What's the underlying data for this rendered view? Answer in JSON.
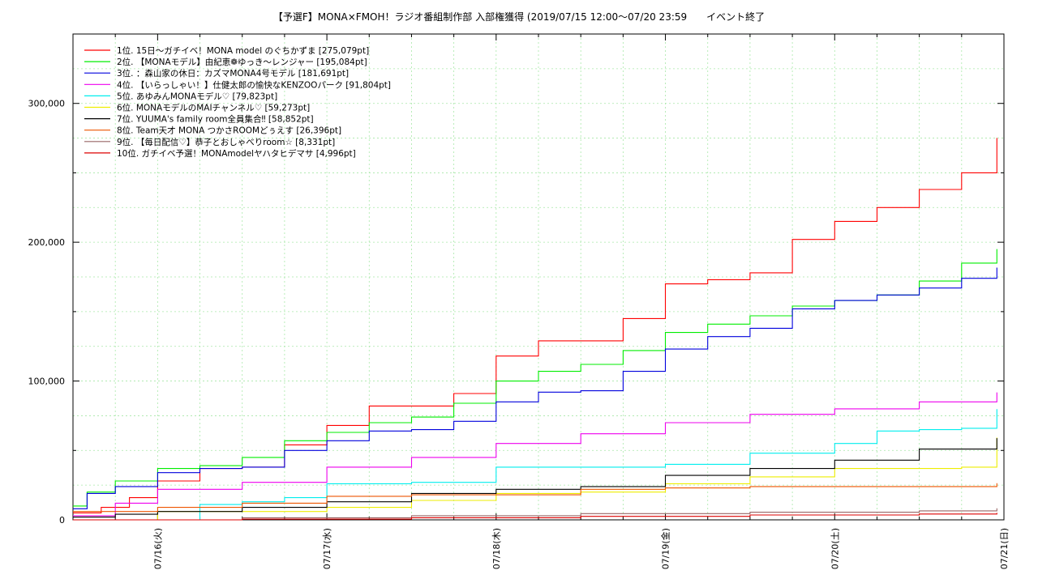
{
  "chart_data": {
    "type": "line",
    "title": "【予選F】MONA×FMOH！ラジオ番組制作部 入部権獲得 (2019/07/15 12:00〜07/20 23:59　　イベント終了",
    "xlabel": "",
    "ylabel": "",
    "x_start": "07/15 12:00",
    "x_end": "07/21 00:00",
    "x_ticks": [
      "07/16(火)",
      "07/17(水)",
      "07/18(木)",
      "07/19(金)",
      "07/20(土)",
      "07/21(日)"
    ],
    "y_ticks": [
      "0",
      "100,000",
      "200,000",
      "300,000"
    ],
    "ylim": [
      0,
      350000
    ],
    "grid": true,
    "legend_position": "top-left",
    "series": [
      {
        "name": "1位. 15日〜ガチイベ！MONA model のぐちかずま [275,079pt]",
        "color": "#ff0000",
        "x": [
          "07/15 12:00",
          "07/15 16:00",
          "07/15 20:00",
          "07/16 00:00",
          "07/16 06:00",
          "07/16 12:00",
          "07/16 18:00",
          "07/17 00:00",
          "07/17 06:00",
          "07/17 12:00",
          "07/17 18:00",
          "07/18 00:00",
          "07/18 06:00",
          "07/18 12:00",
          "07/18 18:00",
          "07/19 00:00",
          "07/19 06:00",
          "07/19 12:00",
          "07/19 18:00",
          "07/20 00:00",
          "07/20 06:00",
          "07/20 12:00",
          "07/20 18:00",
          "07/20 23:00"
        ],
        "y": [
          5000,
          9000,
          16000,
          28000,
          37000,
          38000,
          54000,
          68000,
          82000,
          82000,
          91000,
          118000,
          129000,
          129000,
          145000,
          170000,
          173000,
          178000,
          202000,
          215000,
          225000,
          238000,
          250000,
          275079
        ]
      },
      {
        "name": "2位. 【MONAモデル】由紀恵❁ゆっき〜レンジャー [195,084pt]",
        "color": "#00ee00",
        "x": [
          "07/15 12:00",
          "07/15 14:00",
          "07/15 18:00",
          "07/16 00:00",
          "07/16 06:00",
          "07/16 12:00",
          "07/16 18:00",
          "07/17 00:00",
          "07/17 06:00",
          "07/17 12:00",
          "07/17 18:00",
          "07/18 00:00",
          "07/18 06:00",
          "07/18 12:00",
          "07/18 18:00",
          "07/19 00:00",
          "07/19 06:00",
          "07/19 12:00",
          "07/19 18:00",
          "07/20 00:00",
          "07/20 06:00",
          "07/20 12:00",
          "07/20 18:00",
          "07/20 23:00"
        ],
        "y": [
          10000,
          20000,
          28000,
          37000,
          39000,
          45000,
          57000,
          63000,
          70000,
          74000,
          84000,
          100000,
          107000,
          112000,
          122000,
          135000,
          141000,
          147000,
          154000,
          158000,
          162000,
          172000,
          185000,
          195084
        ]
      },
      {
        "name": "3位. ：森山家の休日：カズマMONA4号モデル [181,691pt]",
        "color": "#0000dd",
        "x": [
          "07/15 12:00",
          "07/15 14:00",
          "07/15 18:00",
          "07/16 00:00",
          "07/16 06:00",
          "07/16 12:00",
          "07/16 18:00",
          "07/17 00:00",
          "07/17 06:00",
          "07/17 12:00",
          "07/17 18:00",
          "07/18 00:00",
          "07/18 06:00",
          "07/18 12:00",
          "07/18 18:00",
          "07/19 00:00",
          "07/19 06:00",
          "07/19 12:00",
          "07/19 18:00",
          "07/20 00:00",
          "07/20 06:00",
          "07/20 12:00",
          "07/20 18:00",
          "07/20 23:00"
        ],
        "y": [
          8000,
          19000,
          24000,
          34000,
          37000,
          38000,
          50000,
          57000,
          64000,
          65000,
          71000,
          85000,
          92000,
          93000,
          107000,
          123000,
          132000,
          138000,
          152000,
          158000,
          162000,
          167000,
          174000,
          181691
        ]
      },
      {
        "name": "4位. 【いらっしゃい！】仕健太郎の愉快なKENZOOパーク [91,804pt]",
        "color": "#ee00ee",
        "x": [
          "07/15 12:00",
          "07/15 18:00",
          "07/16 00:00",
          "07/16 12:00",
          "07/17 00:00",
          "07/17 12:00",
          "07/18 00:00",
          "07/18 12:00",
          "07/19 00:00",
          "07/19 12:00",
          "07/20 00:00",
          "07/20 12:00",
          "07/20 23:00"
        ],
        "y": [
          3000,
          12000,
          22000,
          27000,
          38000,
          45000,
          55000,
          62000,
          70000,
          76000,
          80000,
          85000,
          91804
        ]
      },
      {
        "name": "5位. あゆみんMONAモデル♡ [79,823pt]",
        "color": "#00eeee",
        "x": [
          "07/15 12:00",
          "07/16 00:00",
          "07/16 06:00",
          "07/16 12:00",
          "07/16 18:00",
          "07/17 00:00",
          "07/17 12:00",
          "07/18 00:00",
          "07/18 12:00",
          "07/19 00:00",
          "07/19 12:00",
          "07/20 00:00",
          "07/20 06:00",
          "07/20 12:00",
          "07/20 18:00",
          "07/20 23:00"
        ],
        "y": [
          0,
          0,
          11000,
          13000,
          16000,
          26000,
          27000,
          38000,
          38000,
          40000,
          48000,
          55000,
          64000,
          65000,
          66000,
          79823
        ]
      },
      {
        "name": "6位. MONAモデルのMAIチャンネル♡ [59,273pt]",
        "color": "#eeee00",
        "x": [
          "07/15 12:00",
          "07/16 00:00",
          "07/16 12:00",
          "07/17 00:00",
          "07/17 12:00",
          "07/18 00:00",
          "07/18 12:00",
          "07/19 00:00",
          "07/19 12:00",
          "07/20 00:00",
          "07/20 12:00",
          "07/20 18:00",
          "07/20 23:00"
        ],
        "y": [
          0,
          6000,
          6000,
          9000,
          14000,
          19000,
          20000,
          26000,
          31000,
          37000,
          37000,
          38000,
          59273
        ]
      },
      {
        "name": "7位. YUUMA's family room全員集合‼ [58,852pt]",
        "color": "#000000",
        "x": [
          "07/15 12:00",
          "07/15 18:00",
          "07/16 00:00",
          "07/16 12:00",
          "07/17 00:00",
          "07/17 12:00",
          "07/18 00:00",
          "07/18 12:00",
          "07/19 00:00",
          "07/19 12:00",
          "07/20 00:00",
          "07/20 12:00",
          "07/20 23:00"
        ],
        "y": [
          2000,
          4000,
          6000,
          9000,
          13000,
          19000,
          22000,
          24000,
          32000,
          37000,
          43000,
          51000,
          58852
        ]
      },
      {
        "name": "8位. Team天才 MONA つかさROOMどぅえす [26,396pt]",
        "color": "#ee5500",
        "x": [
          "07/15 12:00",
          "07/16 00:00",
          "07/16 12:00",
          "07/17 00:00",
          "07/17 12:00",
          "07/18 00:00",
          "07/18 12:00",
          "07/19 00:00",
          "07/19 12:00",
          "07/20 00:00",
          "07/20 12:00",
          "07/20 23:00"
        ],
        "y": [
          6000,
          9000,
          12000,
          17000,
          18000,
          18000,
          22000,
          23000,
          24000,
          24000,
          24000,
          26396
        ]
      },
      {
        "name": "9位. 【毎日配信♡】恭子とおしゃべりroom☆ [8,331pt]",
        "color": "#996666",
        "x": [
          "07/15 12:00",
          "07/16 12:00",
          "07/17 12:00",
          "07/18 12:00",
          "07/19 12:00",
          "07/20 12:00",
          "07/20 23:00"
        ],
        "y": [
          0,
          1500,
          3000,
          4500,
          5500,
          6500,
          8331
        ]
      },
      {
        "name": "10位. ガチイベ予選！MONAmodelヤハタヒデマサ [4,996pt]",
        "color": "#dd0000",
        "x": [
          "07/15 12:00",
          "07/16 12:00",
          "07/17 12:00",
          "07/18 12:00",
          "07/19 12:00",
          "07/20 12:00",
          "07/20 23:00"
        ],
        "y": [
          0,
          500,
          1500,
          2500,
          3500,
          4200,
          4996
        ]
      }
    ]
  }
}
